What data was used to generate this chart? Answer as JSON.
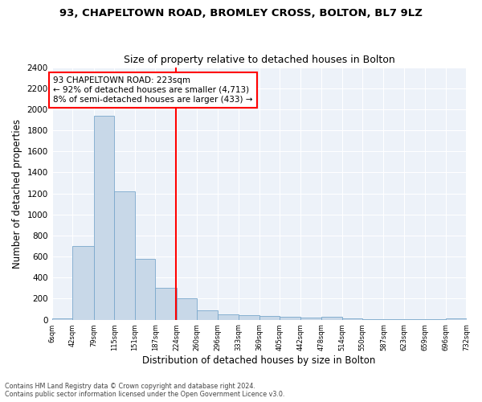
{
  "title": "93, CHAPELTOWN ROAD, BROMLEY CROSS, BOLTON, BL7 9LZ",
  "subtitle": "Size of property relative to detached houses in Bolton",
  "xlabel": "Distribution of detached houses by size in Bolton",
  "ylabel": "Number of detached properties",
  "bar_color": "#c8d8e8",
  "bar_edge_color": "#7aa8cc",
  "property_line_value": 223,
  "property_line_color": "red",
  "annotation_text": "93 CHAPELTOWN ROAD: 223sqm\n← 92% of detached houses are smaller (4,713)\n8% of semi-detached houses are larger (433) →",
  "bins": [
    6,
    42,
    79,
    115,
    151,
    187,
    224,
    260,
    296,
    333,
    369,
    405,
    442,
    478,
    514,
    550,
    587,
    623,
    659,
    696,
    732
  ],
  "bar_heights": [
    15,
    700,
    1940,
    1220,
    575,
    305,
    205,
    85,
    50,
    40,
    35,
    30,
    20,
    25,
    10,
    5,
    5,
    5,
    5,
    15
  ],
  "ylim": [
    0,
    2400
  ],
  "yticks": [
    0,
    200,
    400,
    600,
    800,
    1000,
    1200,
    1400,
    1600,
    1800,
    2000,
    2200,
    2400
  ],
  "footer_line1": "Contains HM Land Registry data © Crown copyright and database right 2024.",
  "footer_line2": "Contains public sector information licensed under the Open Government Licence v3.0.",
  "bg_color": "#edf2f9"
}
